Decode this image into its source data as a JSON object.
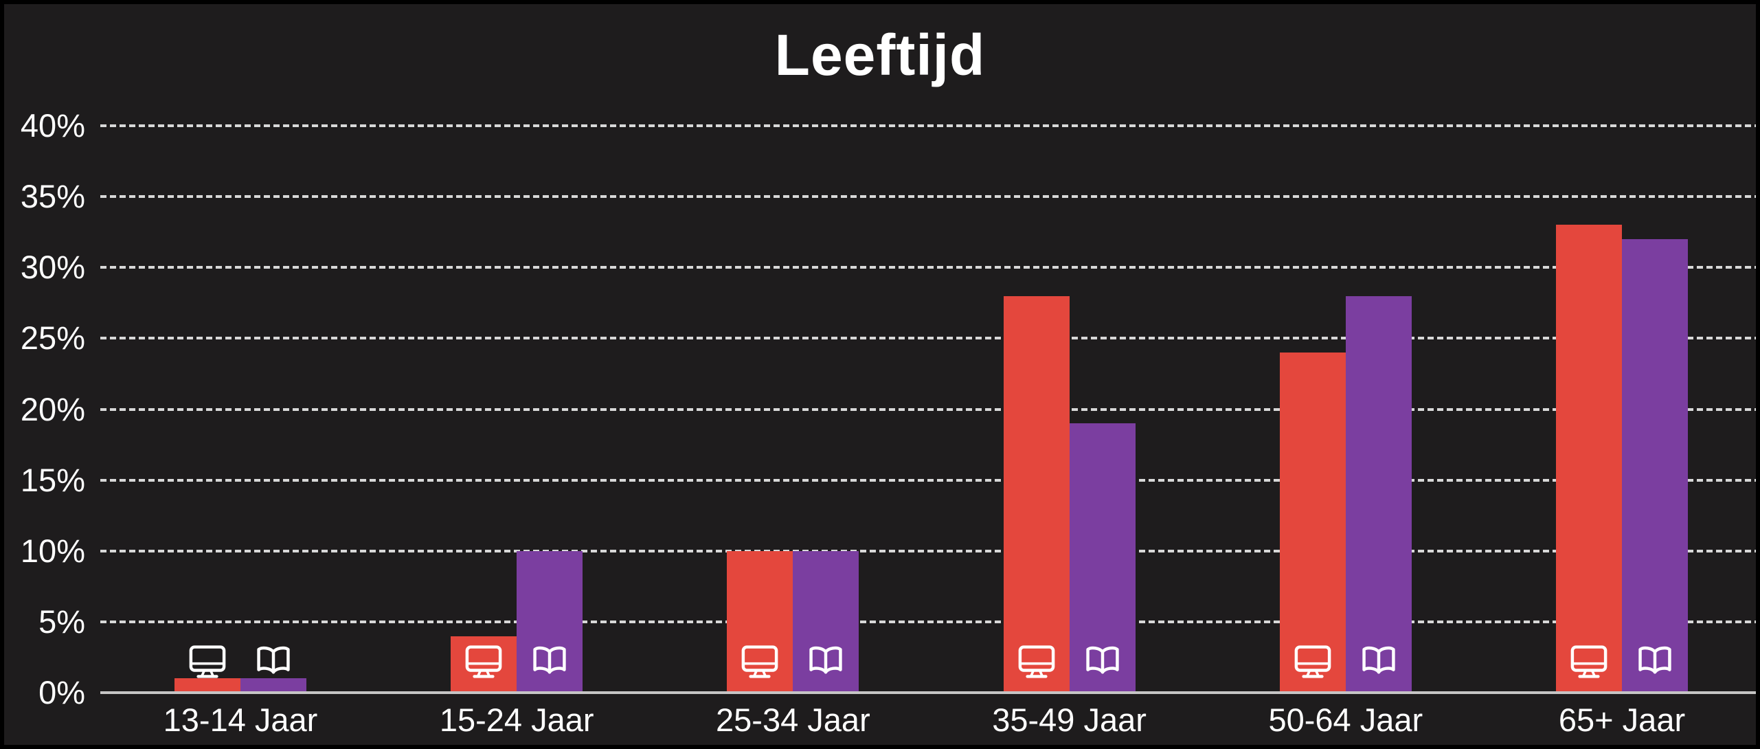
{
  "chart_data": {
    "type": "bar",
    "title": "Leeftijd",
    "categories": [
      "13-14 Jaar",
      "15-24 Jaar",
      "25-34 Jaar",
      "35-49 Jaar",
      "50-64 Jaar",
      "65+ Jaar"
    ],
    "series": [
      {
        "name": "monitor",
        "icon": "monitor-icon",
        "color": "#E4473D",
        "values": [
          1,
          4,
          10,
          28,
          24,
          33
        ]
      },
      {
        "name": "open-book",
        "icon": "open-book-icon",
        "color": "#7B3EA0",
        "values": [
          1,
          10,
          10,
          19,
          28,
          32
        ]
      }
    ],
    "y_ticks": [
      "0%",
      "5%",
      "10%",
      "15%",
      "20%",
      "25%",
      "30%",
      "35%",
      "40%"
    ],
    "ylim": [
      0,
      40
    ],
    "xlabel": "",
    "ylabel": "",
    "grid": "horizontal-dashed",
    "legend_position": "none (series identified by icons at bar bases)",
    "colors": {
      "background": "#1E1C1D",
      "frame": "#000000",
      "text": "#FFFFFF",
      "gridline": "#D8D8D8",
      "axis_line": "#C6C5C5",
      "icon": "#FFFFFF"
    }
  }
}
